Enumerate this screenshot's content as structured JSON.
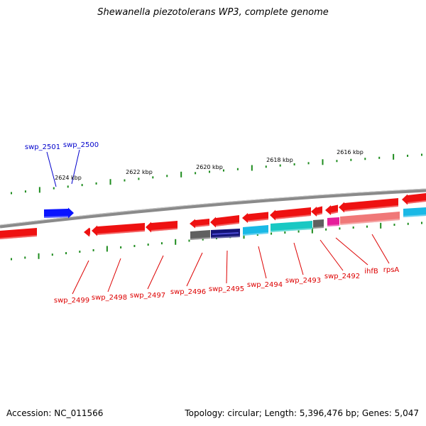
{
  "title": "Shewanella piezotolerans WP3, complete genome",
  "footer": {
    "accession": "Accession: NC_011566",
    "info": "Topology: circular; Length: 5,396,476 bp; Genes: 5,047"
  },
  "colors": {
    "backbone": "#8a8a8a",
    "tick": "#1e8c1e",
    "gene_red": "#ee1111",
    "gene_blue": "#0a14ff",
    "gene_cyan": "#19b9e6",
    "gene_teal": "#19c8c3",
    "gene_gray": "#606060",
    "gene_navy": "#141478",
    "gene_magenta": "#e61e9b",
    "gene_pink": "#f07878",
    "label_red": "#dd0000",
    "label_blue": "#0000cc"
  },
  "ruler": [
    "2624 kbp",
    "2622 kbp",
    "2620 kbp",
    "2618 kbp",
    "2616 kbp"
  ],
  "gene_labels": [
    {
      "name": "swp_2501",
      "color": "blue"
    },
    {
      "name": "swp_2500",
      "color": "blue"
    },
    {
      "name": "swp_2499",
      "color": "red"
    },
    {
      "name": "swp_2498",
      "color": "red"
    },
    {
      "name": "swp_2497",
      "color": "red"
    },
    {
      "name": "swp_2496",
      "color": "red"
    },
    {
      "name": "swp_2495",
      "color": "red"
    },
    {
      "name": "swp_2494",
      "color": "red"
    },
    {
      "name": "swp_2493",
      "color": "red"
    },
    {
      "name": "swp_2492",
      "color": "red"
    },
    {
      "name": "ihfB",
      "color": "red"
    },
    {
      "name": "rpsA",
      "color": "red"
    }
  ]
}
